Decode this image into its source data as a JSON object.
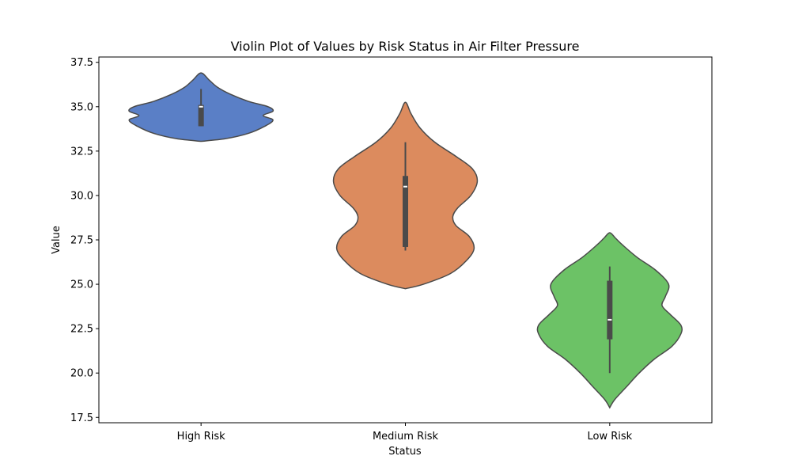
{
  "chart_data": {
    "type": "violin",
    "title": "Violin Plot of Values by Risk Status in Air Filter Pressure",
    "xlabel": "Status",
    "ylabel": "Value",
    "ylim": [
      17.2,
      37.8
    ],
    "yticks": [
      "17.5",
      "20.0",
      "22.5",
      "25.0",
      "27.5",
      "30.0",
      "32.5",
      "35.0",
      "37.5"
    ],
    "grid": false,
    "categories": [
      "High Risk",
      "Medium Risk",
      "Low Risk"
    ],
    "series": [
      {
        "color": "#5a7fc6",
        "whisker": [
          33.9,
          36.0
        ],
        "box": [
          33.9,
          35.1
        ],
        "median": 35.0,
        "density": [
          [
            33.05,
            0
          ],
          [
            33.2,
            0.3
          ],
          [
            33.5,
            0.58
          ],
          [
            33.9,
            0.78
          ],
          [
            34.25,
            0.88
          ],
          [
            34.5,
            0.76
          ],
          [
            34.75,
            0.88
          ],
          [
            35.0,
            0.82
          ],
          [
            35.3,
            0.58
          ],
          [
            35.7,
            0.36
          ],
          [
            36.1,
            0.2
          ],
          [
            36.5,
            0.1
          ],
          [
            36.9,
            0
          ]
        ]
      },
      {
        "color": "#dc8b5e",
        "whisker": [
          26.9,
          33.0
        ],
        "box": [
          27.1,
          31.1
        ],
        "median": 30.5,
        "density": [
          [
            24.75,
            0
          ],
          [
            25.0,
            0.22
          ],
          [
            25.6,
            0.55
          ],
          [
            26.3,
            0.74
          ],
          [
            27.0,
            0.84
          ],
          [
            27.7,
            0.78
          ],
          [
            28.3,
            0.62
          ],
          [
            28.8,
            0.58
          ],
          [
            29.3,
            0.64
          ],
          [
            30.0,
            0.8
          ],
          [
            30.8,
            0.88
          ],
          [
            31.5,
            0.82
          ],
          [
            32.2,
            0.62
          ],
          [
            33.0,
            0.36
          ],
          [
            33.8,
            0.18
          ],
          [
            34.6,
            0.07
          ],
          [
            35.25,
            0
          ]
        ]
      },
      {
        "color": "#6cc266",
        "whisker": [
          20.0,
          26.0
        ],
        "box": [
          21.9,
          25.2
        ],
        "median": 23.0,
        "density": [
          [
            18.05,
            0
          ],
          [
            18.5,
            0.06
          ],
          [
            19.2,
            0.2
          ],
          [
            20.0,
            0.36
          ],
          [
            20.8,
            0.55
          ],
          [
            21.5,
            0.76
          ],
          [
            22.2,
            0.87
          ],
          [
            22.7,
            0.87
          ],
          [
            23.3,
            0.74
          ],
          [
            23.8,
            0.64
          ],
          [
            24.3,
            0.68
          ],
          [
            25.0,
            0.72
          ],
          [
            25.8,
            0.56
          ],
          [
            26.5,
            0.34
          ],
          [
            27.2,
            0.16
          ],
          [
            27.6,
            0.07
          ],
          [
            27.9,
            0
          ]
        ]
      }
    ]
  }
}
